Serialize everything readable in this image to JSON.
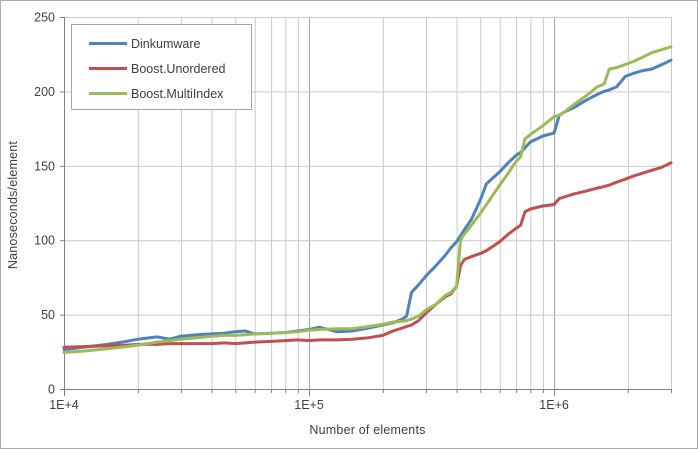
{
  "chart_data": {
    "type": "line",
    "title": "",
    "xlabel": "Number of elements",
    "ylabel": "Nanoseconds/element",
    "x_scale": "log",
    "xlim": [
      10000,
      3000000
    ],
    "ylim": [
      0,
      250
    ],
    "x_tick_labels": [
      {
        "label": "1E+4",
        "value": 10000
      },
      {
        "label": "1E+5",
        "value": 100000
      },
      {
        "label": "1E+6",
        "value": 1000000
      }
    ],
    "y_ticks": [
      0,
      50,
      100,
      150,
      200,
      250
    ],
    "grid": "horizontal lines every 50; vertical log minor gridlines at 2-9 per decade",
    "legend_position": "top-left inside plot",
    "colors": {
      "grid_minor": "#c9c9c9",
      "grid_major": "#a3a3a3",
      "axis": "#808080",
      "text": "#3f3f3f",
      "background": "#ffffff",
      "legend_border": "#a6a6a6"
    },
    "x": [
      10000,
      12000,
      15000,
      18000,
      20000,
      24000,
      27000,
      30000,
      35000,
      40000,
      45000,
      50000,
      55000,
      60000,
      70000,
      80000,
      90000,
      100000,
      110000,
      130000,
      150000,
      175000,
      200000,
      220000,
      240000,
      250000,
      262000,
      280000,
      300000,
      330000,
      360000,
      380000,
      400000,
      415000,
      430000,
      460000,
      500000,
      530000,
      600000,
      650000,
      700000,
      730000,
      760000,
      800000,
      900000,
      1000000,
      1050000,
      1100000,
      1200000,
      1350000,
      1500000,
      1600000,
      1680000,
      1800000,
      1950000,
      2100000,
      2300000,
      2500000,
      2750000,
      3000000
    ],
    "series": [
      {
        "name": "Dinkumware",
        "color": "#4f81bd",
        "values": [
          26.5,
          28,
          30,
          32,
          33.5,
          35,
          33.5,
          35.5,
          36.5,
          37,
          37.5,
          38.5,
          39,
          37,
          37.5,
          38,
          39,
          40,
          41.5,
          38.5,
          39,
          41,
          43,
          44.5,
          47,
          49,
          65,
          70,
          76,
          83,
          90,
          95,
          99,
          103,
          107,
          114,
          127,
          138,
          146,
          152,
          157,
          159,
          162,
          166,
          170,
          172,
          184,
          186,
          189,
          194,
          198,
          200,
          201,
          203,
          210,
          212,
          214,
          215,
          218,
          221
        ]
      },
      {
        "name": "Boost.Unordered",
        "color": "#c0504d",
        "values": [
          28,
          28.5,
          29,
          29.5,
          30,
          30,
          30.5,
          30.5,
          30.5,
          30.5,
          31,
          30.5,
          31,
          31.5,
          32,
          32.5,
          33,
          32.5,
          33,
          33,
          33.5,
          34.5,
          36,
          39,
          41,
          42,
          43,
          46,
          51,
          57,
          62,
          64,
          69,
          83,
          87,
          89,
          91,
          93,
          99,
          104,
          108,
          110,
          119,
          121,
          123,
          124,
          128,
          129,
          131,
          133,
          135,
          136,
          137,
          139,
          141,
          143,
          145,
          147,
          149,
          152
        ]
      },
      {
        "name": "Boost.MultiIndex",
        "color": "#9bbb59",
        "values": [
          24.5,
          25.5,
          27,
          28.5,
          29.5,
          31.5,
          32.5,
          33.5,
          34.5,
          35.5,
          36,
          36,
          36.5,
          37,
          37.5,
          38,
          38.5,
          39.5,
          40,
          40.5,
          40.5,
          42,
          43.5,
          45,
          45.5,
          46,
          47,
          49,
          53,
          57,
          63,
          65,
          69,
          100,
          104,
          110,
          118,
          124,
          137,
          145,
          153,
          156,
          168,
          171,
          177,
          183,
          184,
          186,
          191,
          197,
          203,
          205,
          215,
          216,
          218,
          220,
          223,
          226,
          228,
          230
        ]
      }
    ]
  }
}
